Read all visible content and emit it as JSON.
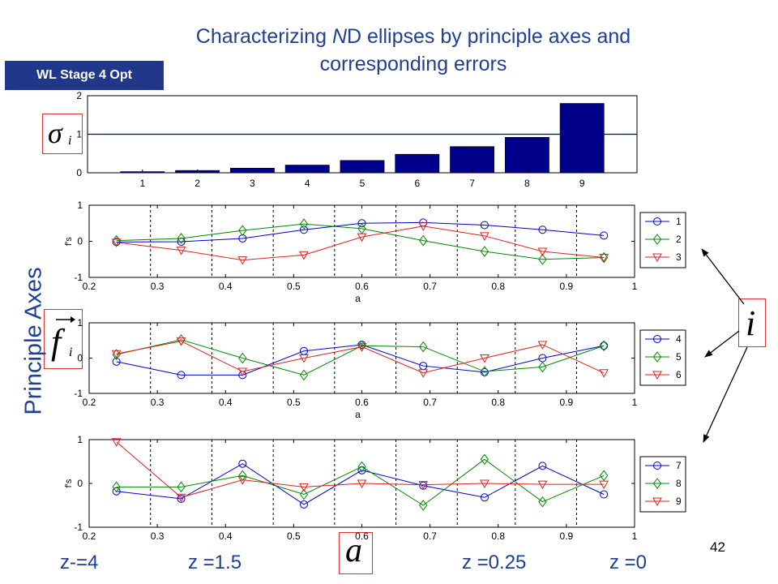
{
  "slide": {
    "title_line1_pre": "Characterizing ",
    "title_line1_italic": "N",
    "title_line1_post": "D ellipses by principle axes and",
    "title_line2": "corresponding errors",
    "badge": "WL Stage 4 Opt",
    "vertical_label": "Principle Axes",
    "page_number": "42",
    "symbols": {
      "sigma": "σ",
      "sigma_sub": "i",
      "f": "f",
      "f_sub": "i",
      "i": "i",
      "a": "a"
    },
    "z_labels": [
      "z-=4",
      "z =1.5",
      "z =0.25",
      "z =0"
    ]
  },
  "colors": {
    "blue": "#0000cc",
    "green": "#008800",
    "red": "#dd2222",
    "bar": "#00008b",
    "text_blue": "#1f3f8f"
  },
  "chart_data": [
    {
      "type": "bar",
      "categories": [
        "1",
        "2",
        "3",
        "4",
        "5",
        "6",
        "7",
        "8",
        "9"
      ],
      "values": [
        0.03,
        0.06,
        0.12,
        0.2,
        0.32,
        0.48,
        0.68,
        0.92,
        1.8
      ],
      "reference_line": 1,
      "ylim": [
        0,
        2
      ],
      "yticks": [
        "0",
        "1",
        "2"
      ]
    },
    {
      "type": "line",
      "x": [
        0.24,
        0.335,
        0.425,
        0.515,
        0.6,
        0.69,
        0.78,
        0.865,
        0.955
      ],
      "xlim": [
        0.2,
        1
      ],
      "ylim": [
        -1,
        1
      ],
      "xticks": [
        "0.2",
        "0.3",
        "0.4",
        "0.5",
        "0.6",
        "0.7",
        "0.8",
        "0.9",
        "1"
      ],
      "yticks": [
        "-1",
        "0",
        "1"
      ],
      "xlabel": "a",
      "ylabel": "f's",
      "vlines": [
        0.29,
        0.38,
        0.47,
        0.56,
        0.65,
        0.74,
        0.825,
        0.915
      ],
      "series": [
        {
          "name": "1",
          "marker": "circle",
          "values": [
            -0.02,
            -0.01,
            0.08,
            0.32,
            0.5,
            0.52,
            0.45,
            0.32,
            0.16
          ]
        },
        {
          "name": "2",
          "marker": "diamond",
          "values": [
            0.02,
            0.08,
            0.3,
            0.48,
            0.35,
            0.02,
            -0.28,
            -0.5,
            -0.45
          ]
        },
        {
          "name": "3",
          "marker": "triangle",
          "values": [
            -0.03,
            -0.25,
            -0.52,
            -0.38,
            0.12,
            0.42,
            0.15,
            -0.28,
            -0.45
          ]
        }
      ]
    },
    {
      "type": "line",
      "x": [
        0.24,
        0.335,
        0.425,
        0.515,
        0.6,
        0.69,
        0.78,
        0.865,
        0.955
      ],
      "xlim": [
        0.2,
        1
      ],
      "ylim": [
        -1,
        1
      ],
      "xticks": [
        "0.2",
        "0.3",
        "0.4",
        "0.5",
        "0.6",
        "0.7",
        "0.8",
        "0.9",
        "1"
      ],
      "yticks": [
        "-1",
        "0",
        "1"
      ],
      "xlabel": "a",
      "ylabel": "",
      "vlines": [
        0.29,
        0.38,
        0.47,
        0.56,
        0.65,
        0.74,
        0.825,
        0.915
      ],
      "series": [
        {
          "name": "4",
          "marker": "circle",
          "values": [
            -0.1,
            -0.48,
            -0.48,
            0.2,
            0.38,
            -0.22,
            -0.4,
            0.0,
            0.35
          ]
        },
        {
          "name": "5",
          "marker": "diamond",
          "values": [
            0.1,
            0.52,
            0.0,
            -0.48,
            0.35,
            0.32,
            -0.38,
            -0.25,
            0.35
          ]
        },
        {
          "name": "6",
          "marker": "triangle",
          "values": [
            0.12,
            0.48,
            -0.38,
            0.0,
            0.32,
            -0.42,
            0.0,
            0.38,
            -0.42
          ]
        }
      ]
    },
    {
      "type": "line",
      "x": [
        0.24,
        0.335,
        0.425,
        0.515,
        0.6,
        0.69,
        0.78,
        0.865,
        0.955
      ],
      "xlim": [
        0.2,
        1
      ],
      "ylim": [
        -1,
        1
      ],
      "xticks": [
        "0.2",
        "0.3",
        "0.4",
        "0.5",
        "0.6",
        "0.7",
        "0.8",
        "0.9",
        "1"
      ],
      "yticks": [
        "-1",
        "0",
        "1"
      ],
      "xlabel": "",
      "ylabel": "f's",
      "vlines": [
        0.29,
        0.38,
        0.47,
        0.56,
        0.65,
        0.74,
        0.825,
        0.915
      ],
      "series": [
        {
          "name": "7",
          "marker": "circle",
          "values": [
            -0.18,
            -0.35,
            0.45,
            -0.48,
            0.3,
            -0.05,
            -0.32,
            0.4,
            -0.25
          ]
        },
        {
          "name": "8",
          "marker": "diamond",
          "values": [
            -0.08,
            -0.08,
            0.18,
            -0.25,
            0.38,
            -0.5,
            0.55,
            -0.42,
            0.18
          ]
        },
        {
          "name": "9",
          "marker": "triangle",
          "values": [
            0.95,
            -0.32,
            0.08,
            -0.08,
            0.0,
            -0.03,
            0.0,
            -0.02,
            -0.02
          ]
        }
      ]
    }
  ]
}
